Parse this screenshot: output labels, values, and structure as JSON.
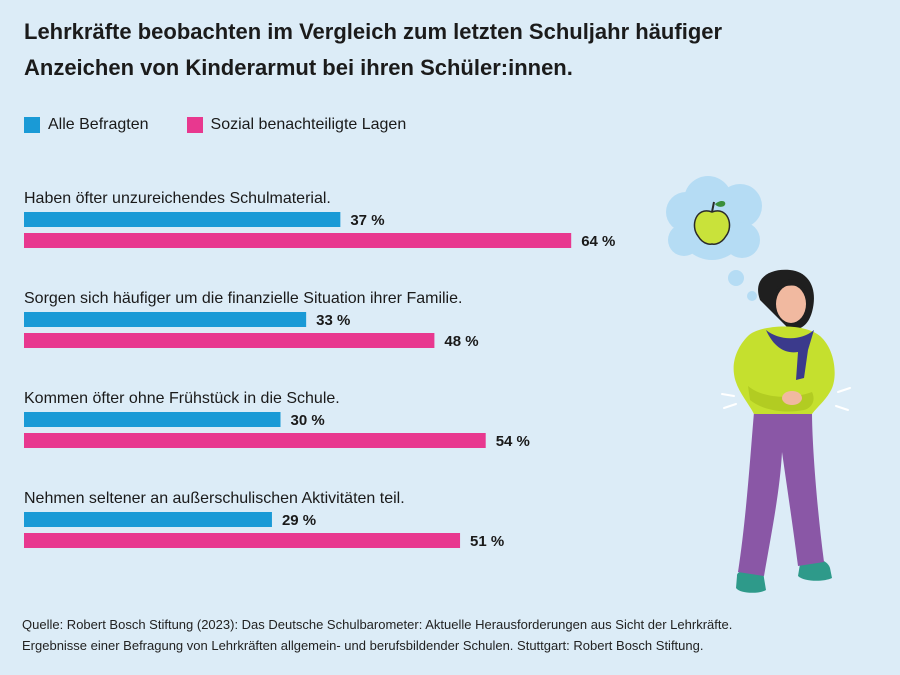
{
  "title_line1": "Lehrkräfte beobachten im Vergleich zum letzten Schuljahr häufiger",
  "title_line2": "Anzeichen von Kinderarmut bei ihren Schüler:innen.",
  "colors": {
    "all": "#1a9ad6",
    "disadvantaged": "#e8388f"
  },
  "chart_data": {
    "type": "bar",
    "orientation": "horizontal",
    "categories": [
      "Haben öfter unzureichendes Schulmaterial.",
      "Sorgen sich häufiger um die finanzielle Situation ihrer Familie.",
      "Kommen öfter ohne Frühstück in die Schule.",
      "Nehmen seltener an außerschulischen Aktivitäten teil."
    ],
    "series": [
      {
        "name": "Alle Befragten",
        "values": [
          37,
          33,
          30,
          29
        ],
        "labels": [
          "37 %",
          "33 %",
          "30 %",
          "29 %"
        ]
      },
      {
        "name": "Sozial benachteiligte Lagen",
        "values": [
          64,
          48,
          54,
          51
        ],
        "labels": [
          "64 %",
          "48 %",
          "54 %",
          "51 %"
        ]
      }
    ],
    "unit": "%",
    "xlim": [
      0,
      100
    ],
    "grid": false,
    "legend_position": "top-left"
  },
  "source_line1": "Quelle: Robert Bosch Stiftung (2023): Das Deutsche Schulbarometer: Aktuelle Herausforderungen aus Sicht der Lehrkräfte.",
  "source_line2": "Ergebnisse einer Befragung von Lehrkräften allgemein- und berufsbildender Schulen. Stuttgart: Robert Bosch Stiftung."
}
